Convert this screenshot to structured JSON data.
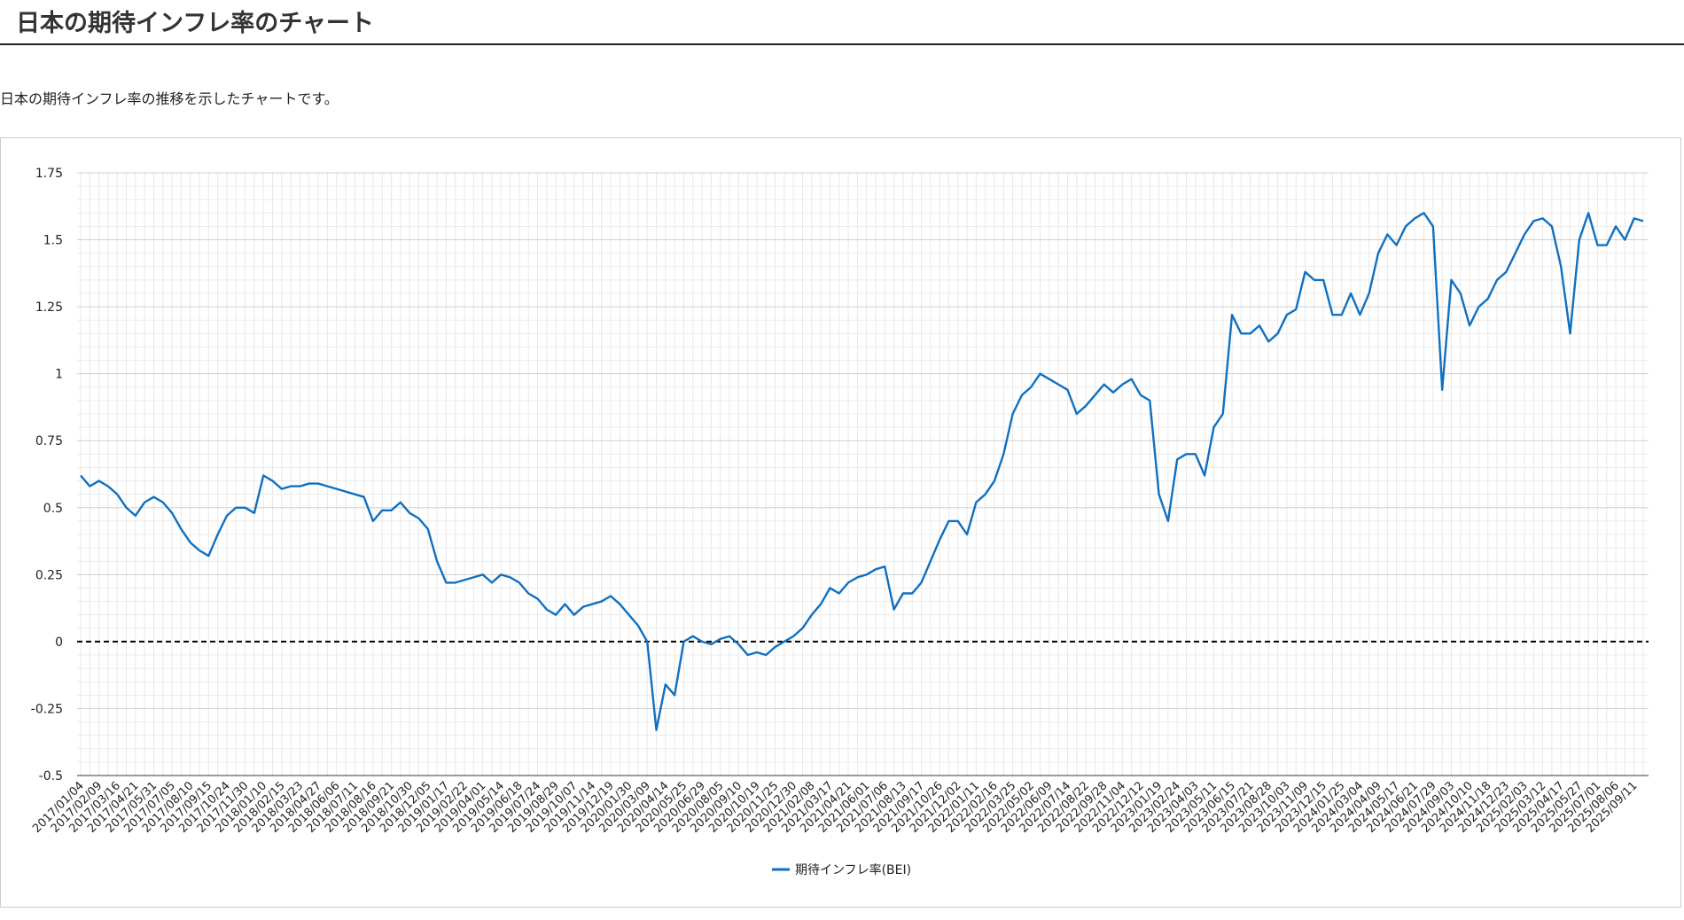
{
  "page": {
    "title": "日本の期待インフレ率のチャート",
    "description": "日本の期待インフレ率の推移を示したチャートです。"
  },
  "chart_data": {
    "type": "line",
    "categories": [
      "2017/01/04",
      null,
      "2017/02/09",
      null,
      "2017/03/16",
      null,
      "2017/04/21",
      null,
      "2017/05/31",
      null,
      "2017/07/05",
      null,
      "2017/08/10",
      null,
      "2017/09/15",
      null,
      "2017/10/24",
      null,
      "2017/11/30",
      null,
      "2018/01/10",
      null,
      "2018/02/15",
      null,
      "2018/03/23",
      null,
      "2018/04/27",
      null,
      "2018/06/06",
      null,
      "2018/07/11",
      null,
      "2018/08/16",
      null,
      "2018/09/21",
      null,
      "2018/10/30",
      null,
      "2018/12/05",
      null,
      "2019/01/17",
      null,
      "2019/02/22",
      null,
      "2019/04/01",
      null,
      "2019/05/14",
      null,
      "2019/06/18",
      null,
      "2019/07/24",
      null,
      "2019/08/29",
      null,
      "2019/10/07",
      null,
      "2019/11/14",
      null,
      "2019/12/19",
      null,
      "2020/01/30",
      null,
      "2020/03/09",
      null,
      "2020/04/14",
      null,
      "2020/05/25",
      null,
      "2020/06/29",
      null,
      "2020/08/05",
      null,
      "2020/09/10",
      null,
      "2020/10/19",
      null,
      "2020/11/25",
      null,
      "2020/12/30",
      null,
      "2021/02/08",
      null,
      "2021/03/17",
      null,
      "2021/04/21",
      null,
      "2021/06/01",
      null,
      "2021/07/06",
      null,
      "2021/08/13",
      null,
      "2021/09/17",
      null,
      "2021/10/26",
      null,
      "2021/12/02",
      null,
      "2022/01/11",
      null,
      "2022/02/16",
      null,
      "2022/03/25",
      null,
      "2022/05/02",
      null,
      "2022/06/09",
      null,
      "2022/07/14",
      null,
      "2022/08/22",
      null,
      "2022/09/28",
      null,
      "2022/11/04",
      null,
      "2022/12/12",
      null,
      "2023/01/19",
      null,
      "2023/02/24",
      null,
      "2023/04/03",
      null,
      "2023/05/11",
      null,
      "2023/06/15",
      null,
      "2023/07/21",
      null,
      "2023/08/28",
      null,
      "2023/10/03",
      null,
      "2023/11/09",
      null,
      "2023/12/15",
      null,
      "2024/01/25",
      null,
      "2024/03/04",
      null,
      "2024/04/09",
      null,
      "2024/05/17",
      null,
      "2024/06/21",
      null,
      "2024/07/29",
      null,
      "2024/09/03",
      null,
      "2024/10/10",
      null,
      "2024/11/18",
      null,
      "2024/12/23",
      null,
      "2025/02/03",
      null,
      "2025/03/12",
      null,
      "2025/04/17",
      null,
      "2025/05/27",
      null,
      "2025/07/01",
      null,
      "2025/08/06",
      null,
      "2025/09/11",
      null
    ],
    "series": [
      {
        "name": "期待インフレ率(BEI)",
        "color": "#1070c0",
        "values": [
          0.62,
          0.58,
          0.6,
          0.58,
          0.55,
          0.5,
          0.47,
          0.52,
          0.54,
          0.52,
          0.48,
          0.42,
          0.37,
          0.34,
          0.32,
          0.4,
          0.47,
          0.5,
          0.5,
          0.48,
          0.62,
          0.6,
          0.57,
          0.58,
          0.58,
          0.59,
          0.59,
          0.58,
          0.57,
          0.56,
          0.55,
          0.54,
          0.45,
          0.49,
          0.49,
          0.52,
          0.48,
          0.46,
          0.42,
          0.3,
          0.22,
          0.22,
          0.23,
          0.24,
          0.25,
          0.22,
          0.25,
          0.24,
          0.22,
          0.18,
          0.16,
          0.12,
          0.1,
          0.14,
          0.1,
          0.13,
          0.14,
          0.15,
          0.17,
          0.14,
          0.1,
          0.06,
          0.0,
          -0.33,
          -0.16,
          -0.2,
          0.0,
          0.02,
          0.0,
          -0.01,
          0.01,
          0.02,
          -0.01,
          -0.05,
          -0.04,
          -0.05,
          -0.02,
          0.0,
          0.02,
          0.05,
          0.1,
          0.14,
          0.2,
          0.18,
          0.22,
          0.24,
          0.25,
          0.27,
          0.28,
          0.12,
          0.18,
          0.18,
          0.22,
          0.3,
          0.38,
          0.45,
          0.45,
          0.4,
          0.52,
          0.55,
          0.6,
          0.7,
          0.85,
          0.92,
          0.95,
          1.0,
          0.98,
          0.96,
          0.94,
          0.85,
          0.88,
          0.92,
          0.96,
          0.93,
          0.96,
          0.98,
          0.92,
          0.9,
          0.55,
          0.45,
          0.68,
          0.7,
          0.7,
          0.62,
          0.8,
          0.85,
          1.22,
          1.15,
          1.15,
          1.18,
          1.12,
          1.15,
          1.22,
          1.24,
          1.38,
          1.35,
          1.35,
          1.22,
          1.22,
          1.3,
          1.22,
          1.3,
          1.45,
          1.52,
          1.48,
          1.55,
          1.58,
          1.6,
          1.55,
          0.94,
          1.35,
          1.3,
          1.18,
          1.25,
          1.28,
          1.35,
          1.38,
          1.45,
          1.52,
          1.57,
          1.58,
          1.55,
          1.4,
          1.15,
          1.5,
          1.6,
          1.48,
          1.48,
          1.55,
          1.5,
          1.58,
          1.57
        ]
      }
    ],
    "ylim": [
      -0.5,
      1.75
    ],
    "yticks": [
      -0.5,
      -0.25,
      0,
      0.25,
      0.5,
      0.75,
      1,
      1.25,
      1.5,
      1.75
    ],
    "grid": true,
    "legend": "bottom"
  }
}
